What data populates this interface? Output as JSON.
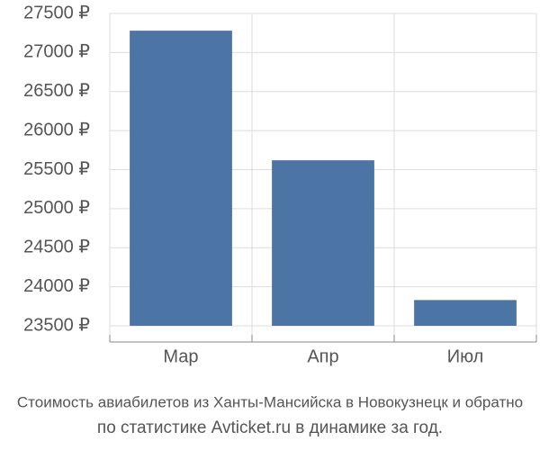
{
  "chart_data": {
    "type": "bar",
    "title": "Стоимость авиабилетов из Ханты-Мансийска в Новокузнецк и обратно",
    "subtitle": "по статистике Avticket.ru в динамике за год.",
    "categories": [
      "Мар",
      "Апр",
      "Июл"
    ],
    "values": [
      27280,
      25620,
      23830
    ],
    "color": "#4c74a4",
    "ylim": [
      23500,
      27500
    ],
    "yticks": [
      {
        "value": 23500,
        "label": "23500 ₽"
      },
      {
        "value": 24000,
        "label": "24000 ₽"
      },
      {
        "value": 24500,
        "label": "24500 ₽"
      },
      {
        "value": 25000,
        "label": "25000 ₽"
      },
      {
        "value": 25500,
        "label": "25500 ₽"
      },
      {
        "value": 26000,
        "label": "26000 ₽"
      },
      {
        "value": 26500,
        "label": "26500 ₽"
      },
      {
        "value": 27000,
        "label": "27000 ₽"
      },
      {
        "value": 27500,
        "label": "27500 ₽"
      }
    ],
    "grid": true
  }
}
